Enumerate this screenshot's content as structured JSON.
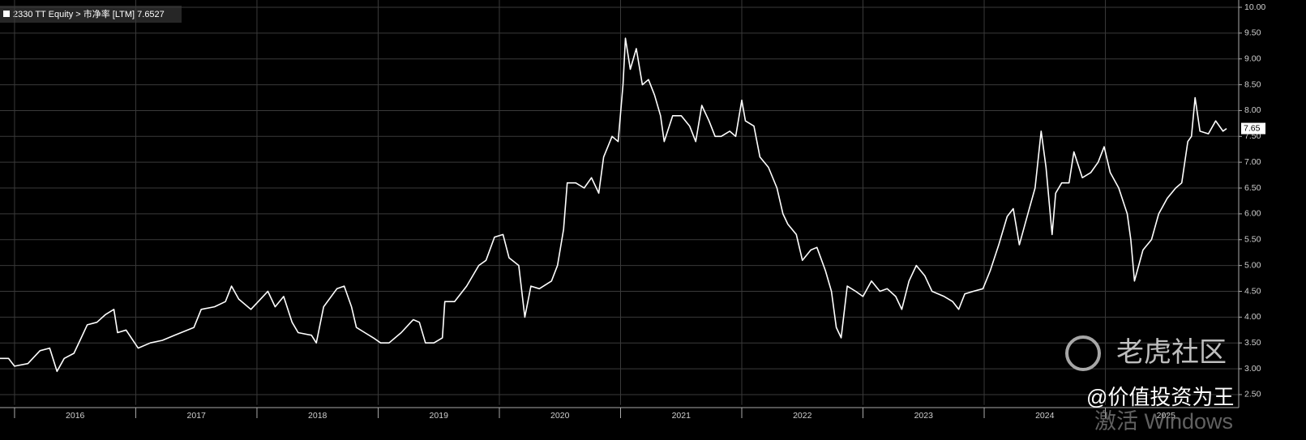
{
  "chart_data": {
    "type": "line",
    "title": "2330 TT Equity > 市净率 [LTM]  7.6527",
    "last_label": {
      "value": 7.6527,
      "label": "7.65"
    },
    "watermark": "老虎社区",
    "author": "@价值投资为王",
    "os_notice": "激活 Windows",
    "series": [
      {
        "name": "市净率 [LTM]",
        "color": "#ffffff",
        "x": [
          2015.88,
          2015.95,
          2016.0,
          2016.11,
          2016.21,
          2016.29,
          2016.35,
          2016.41,
          2016.49,
          2016.55,
          2016.6,
          2016.68,
          2016.75,
          2016.82,
          2016.85,
          2016.92,
          2017.02,
          2017.12,
          2017.22,
          2017.32,
          2017.48,
          2017.54,
          2017.65,
          2017.74,
          2017.79,
          2017.85,
          2017.95,
          2018.05,
          2018.09,
          2018.15,
          2018.22,
          2018.29,
          2018.34,
          2018.45,
          2018.49,
          2018.55,
          2018.66,
          2018.72,
          2018.78,
          2018.82,
          2018.89,
          2018.96,
          2019.02,
          2019.09,
          2019.19,
          2019.29,
          2019.34,
          2019.39,
          2019.46,
          2019.53,
          2019.55,
          2019.63,
          2019.73,
          2019.83,
          2019.89,
          2019.96,
          2020.03,
          2020.08,
          2020.16,
          2020.21,
          2020.26,
          2020.33,
          2020.43,
          2020.48,
          2020.53,
          2020.56,
          2020.63,
          2020.7,
          2020.76,
          2020.82,
          2020.86,
          2020.93,
          2020.98,
          2021.02,
          2021.04,
          2021.08,
          2021.13,
          2021.18,
          2021.23,
          2021.28,
          2021.33,
          2021.36,
          2021.43,
          2021.5,
          2021.57,
          2021.62,
          2021.67,
          2021.73,
          2021.78,
          2021.83,
          2021.9,
          2021.95,
          2022.0,
          2022.03,
          2022.1,
          2022.15,
          2022.22,
          2022.29,
          2022.34,
          2022.38,
          2022.45,
          2022.5,
          2022.57,
          2022.62,
          2022.69,
          2022.74,
          2022.78,
          2022.82,
          2022.87,
          2022.94,
          2023.0,
          2023.07,
          2023.14,
          2023.2,
          2023.27,
          2023.32,
          2023.38,
          2023.44,
          2023.51,
          2023.57,
          2023.67,
          2023.74,
          2023.79,
          2023.84,
          2023.91,
          2023.99,
          2024.05,
          2024.12,
          2024.19,
          2024.24,
          2024.29,
          2024.36,
          2024.42,
          2024.47,
          2024.51,
          2024.56,
          2024.59,
          2024.64,
          2024.7,
          2024.74,
          2024.81,
          2024.88,
          2024.94,
          2024.99,
          2025.04,
          2025.11,
          2025.18,
          2025.21,
          2025.24,
          2025.31,
          2025.38,
          2025.44,
          2025.51,
          2025.58,
          2025.63,
          2025.68,
          2025.71,
          2025.74,
          2025.78,
          2025.85,
          2025.91,
          2025.97,
          2026.0
        ],
        "values": [
          3.2,
          3.2,
          3.05,
          3.1,
          3.35,
          3.4,
          2.95,
          3.2,
          3.3,
          3.6,
          3.85,
          3.9,
          4.05,
          4.15,
          3.7,
          3.75,
          3.4,
          3.5,
          3.55,
          3.65,
          3.8,
          4.15,
          4.2,
          4.3,
          4.6,
          4.35,
          4.15,
          4.4,
          4.5,
          4.2,
          4.4,
          3.9,
          3.7,
          3.65,
          3.5,
          4.2,
          4.55,
          4.6,
          4.2,
          3.8,
          3.7,
          3.6,
          3.5,
          3.5,
          3.7,
          3.95,
          3.9,
          3.5,
          3.5,
          3.6,
          4.3,
          4.3,
          4.6,
          5.0,
          5.1,
          5.55,
          5.6,
          5.15,
          5.0,
          4.0,
          4.6,
          4.55,
          4.7,
          5.0,
          5.7,
          6.6,
          6.6,
          6.5,
          6.7,
          6.4,
          7.1,
          7.5,
          7.4,
          8.5,
          9.4,
          8.8,
          9.2,
          8.5,
          8.6,
          8.3,
          7.9,
          7.4,
          7.9,
          7.9,
          7.7,
          7.4,
          8.1,
          7.8,
          7.5,
          7.5,
          7.6,
          7.5,
          8.2,
          7.8,
          7.7,
          7.1,
          6.9,
          6.5,
          6.0,
          5.8,
          5.6,
          5.1,
          5.3,
          5.35,
          4.9,
          4.5,
          3.8,
          3.6,
          4.6,
          4.5,
          4.4,
          4.7,
          4.5,
          4.55,
          4.4,
          4.15,
          4.7,
          5.0,
          4.8,
          4.5,
          4.4,
          4.3,
          4.15,
          4.45,
          4.5,
          4.55,
          4.9,
          5.4,
          5.95,
          6.1,
          5.4,
          6.0,
          6.5,
          7.6,
          6.9,
          5.6,
          6.4,
          6.6,
          6.6,
          7.2,
          6.7,
          6.8,
          7.0,
          7.3,
          6.8,
          6.5,
          6.0,
          5.5,
          4.7,
          5.3,
          5.5,
          6.0,
          6.3,
          6.5,
          6.6,
          7.4,
          7.5,
          8.25,
          7.6,
          7.55,
          7.8,
          7.6,
          7.65
        ]
      }
    ],
    "xlim": [
      2015.88,
      2026.1
    ],
    "xticks": [
      {
        "value": 2016.5,
        "label": "2016"
      },
      {
        "value": 2017.5,
        "label": "2017"
      },
      {
        "value": 2018.5,
        "label": "2018"
      },
      {
        "value": 2019.5,
        "label": "2019"
      },
      {
        "value": 2020.5,
        "label": "2020"
      },
      {
        "value": 2021.5,
        "label": "2021"
      },
      {
        "value": 2022.5,
        "label": "2022"
      },
      {
        "value": 2023.5,
        "label": "2023"
      },
      {
        "value": 2024.5,
        "label": "2024"
      },
      {
        "value": 2025.5,
        "label": "2025"
      }
    ],
    "xgrid": [
      2016,
      2017,
      2018,
      2019,
      2020,
      2021,
      2022,
      2023,
      2024,
      2025
    ],
    "ylim": [
      2.3,
      10.05
    ],
    "yticks": [
      {
        "value": 2.5,
        "label": "2.50"
      },
      {
        "value": 3,
        "label": "3.00"
      },
      {
        "value": 3.5,
        "label": "3.50"
      },
      {
        "value": 4,
        "label": "4.00"
      },
      {
        "value": 4.5,
        "label": "4.50"
      },
      {
        "value": 5,
        "label": "5.00"
      },
      {
        "value": 5.5,
        "label": "5.50"
      },
      {
        "value": 6,
        "label": "6.00"
      },
      {
        "value": 6.5,
        "label": "6.50"
      },
      {
        "value": 7,
        "label": "7.00"
      },
      {
        "value": 7.5,
        "label": "7.50"
      },
      {
        "value": 8,
        "label": "8.00"
      },
      {
        "value": 8.5,
        "label": "8.50"
      },
      {
        "value": 9,
        "label": "9.00"
      },
      {
        "value": 9.5,
        "label": "9.50"
      },
      {
        "value": 10,
        "label": "10.00"
      }
    ],
    "grid": true
  }
}
